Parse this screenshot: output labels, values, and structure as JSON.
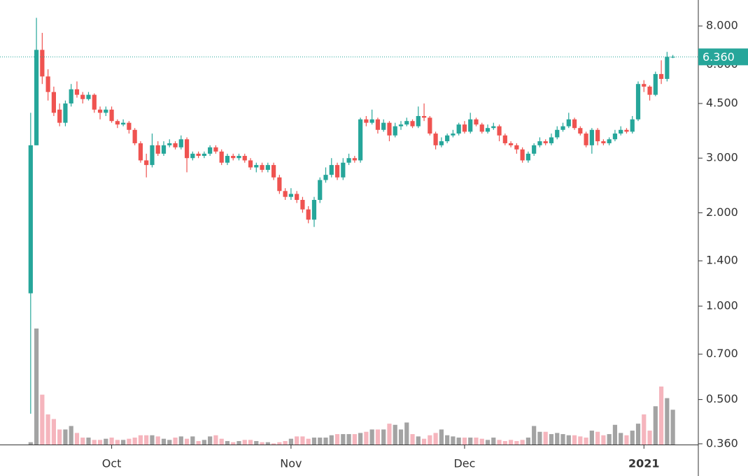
{
  "chart_data": {
    "type": "candlestick",
    "ylog": true,
    "up_color": "#26a69a",
    "down_color": "#ef5350",
    "volume_up_color": "#a3a3a3",
    "volume_down_color": "#f5b5bd",
    "xlim": [
      -5.3,
      115.4
    ],
    "xticks": [
      {
        "value": 14,
        "label": "Oct"
      },
      {
        "value": 45,
        "label": "Nov"
      },
      {
        "value": 75,
        "label": "Dec"
      },
      {
        "value": 106,
        "label": "2021"
      }
    ],
    "ylim": [
      0.358,
      9.7
    ],
    "yticks": [
      {
        "value": 8,
        "label": "8.000"
      },
      {
        "value": 6,
        "label": "6.000"
      },
      {
        "value": 4.5,
        "label": "4.500"
      },
      {
        "value": 3,
        "label": "3.000"
      },
      {
        "value": 2,
        "label": "2.000"
      },
      {
        "value": 1.4,
        "label": "1.400"
      },
      {
        "value": 1,
        "label": "1.000"
      },
      {
        "value": 0.7,
        "label": "0.700"
      },
      {
        "value": 0.5,
        "label": "0.500"
      },
      {
        "value": 0.36,
        "label": "0.360"
      }
    ],
    "volume_ylim": [
      0,
      100
    ],
    "last_price": {
      "value": 6.36,
      "label": "6.360"
    },
    "open": [
      1.1,
      3.3,
      6.7,
      5.5,
      4.9,
      4.3,
      3.9,
      4.5,
      5.0,
      4.8,
      4.65,
      4.8,
      4.3,
      4.2,
      4.3,
      3.95,
      3.85,
      3.9,
      3.7,
      3.35,
      2.95,
      2.85,
      3.3,
      3.1,
      3.3,
      3.35,
      3.25,
      3.45,
      3.0,
      3.1,
      3.05,
      3.1,
      3.25,
      3.15,
      2.9,
      3.05,
      3.0,
      3.05,
      2.95,
      2.8,
      2.85,
      2.75,
      2.85,
      2.6,
      2.35,
      2.25,
      2.3,
      2.2,
      2.05,
      1.9,
      2.2,
      2.55,
      2.65,
      2.85,
      2.6,
      2.9,
      3.0,
      2.95,
      4.0,
      3.9,
      4.0,
      3.7,
      3.9,
      3.55,
      3.8,
      3.85,
      3.95,
      3.8,
      4.1,
      4.05,
      3.6,
      3.3,
      3.4,
      3.55,
      3.6,
      3.85,
      3.65,
      4.0,
      3.85,
      3.65,
      3.75,
      3.8,
      3.55,
      3.35,
      3.3,
      3.2,
      2.95,
      3.1,
      3.3,
      3.4,
      3.35,
      3.5,
      3.7,
      3.8,
      4.0,
      3.75,
      3.6,
      3.3,
      3.7,
      3.4,
      3.35,
      3.45,
      3.6,
      3.7,
      3.65,
      4.0,
      5.2,
      5.1,
      4.8,
      5.6,
      5.4,
      6.36
    ],
    "high": [
      4.2,
      8.5,
      7.6,
      5.8,
      5.1,
      4.5,
      4.6,
      5.2,
      5.3,
      4.9,
      4.9,
      4.85,
      4.4,
      4.4,
      4.4,
      4.0,
      4.0,
      3.95,
      3.75,
      3.4,
      3.1,
      3.6,
      3.4,
      3.4,
      3.45,
      3.4,
      3.55,
      3.5,
      3.15,
      3.15,
      3.15,
      3.3,
      3.3,
      3.2,
      3.1,
      3.1,
      3.1,
      3.1,
      3.0,
      2.9,
      2.9,
      2.9,
      2.9,
      2.65,
      2.4,
      2.4,
      2.35,
      2.25,
      2.1,
      2.25,
      2.6,
      2.8,
      3.0,
      2.9,
      3.0,
      3.1,
      3.05,
      4.05,
      4.1,
      4.3,
      4.05,
      4.0,
      3.95,
      3.9,
      3.95,
      4.05,
      4.0,
      4.4,
      4.5,
      4.1,
      3.65,
      3.5,
      3.6,
      3.7,
      3.9,
      3.95,
      4.2,
      4.05,
      3.9,
      3.85,
      3.9,
      3.85,
      3.6,
      3.4,
      3.35,
      3.25,
      3.15,
      3.35,
      3.5,
      3.45,
      3.6,
      3.8,
      3.9,
      4.2,
      4.05,
      3.8,
      3.65,
      3.75,
      3.75,
      3.45,
      3.5,
      3.7,
      3.8,
      3.75,
      4.1,
      5.3,
      5.35,
      5.15,
      5.7,
      6.2,
      6.6,
      6.45
    ],
    "low": [
      0.45,
      3.3,
      5.2,
      4.6,
      4.1,
      3.8,
      3.8,
      4.4,
      4.7,
      4.5,
      4.6,
      4.2,
      4.0,
      4.1,
      3.9,
      3.75,
      3.8,
      3.6,
      3.3,
      2.9,
      2.6,
      2.8,
      3.05,
      3.05,
      3.25,
      3.2,
      3.2,
      2.7,
      2.95,
      3.0,
      3.0,
      3.05,
      3.1,
      2.85,
      2.85,
      2.95,
      2.95,
      2.9,
      2.75,
      2.7,
      2.7,
      2.7,
      2.55,
      2.3,
      2.2,
      2.2,
      2.15,
      2.0,
      1.85,
      1.8,
      2.15,
      2.5,
      2.6,
      2.55,
      2.55,
      2.85,
      2.9,
      2.9,
      3.8,
      3.85,
      3.6,
      3.65,
      3.4,
      3.5,
      3.7,
      3.8,
      3.75,
      3.75,
      3.95,
      3.55,
      3.2,
      3.25,
      3.35,
      3.5,
      3.55,
      3.6,
      3.6,
      3.8,
      3.6,
      3.6,
      3.7,
      3.4,
      3.3,
      3.25,
      3.1,
      2.9,
      2.9,
      3.05,
      3.25,
      3.3,
      3.3,
      3.45,
      3.65,
      3.75,
      3.7,
      3.55,
      3.25,
      3.1,
      3.3,
      3.3,
      3.3,
      3.4,
      3.55,
      3.6,
      3.6,
      3.95,
      4.9,
      4.6,
      4.75,
      5.2,
      5.3,
      6.3
    ],
    "close": [
      3.3,
      6.7,
      5.5,
      4.9,
      4.2,
      3.9,
      4.5,
      5.0,
      4.8,
      4.65,
      4.8,
      4.3,
      4.2,
      4.3,
      3.95,
      3.85,
      3.9,
      3.7,
      3.35,
      2.95,
      2.85,
      3.3,
      3.1,
      3.3,
      3.35,
      3.25,
      3.45,
      3.0,
      3.1,
      3.05,
      3.1,
      3.25,
      3.15,
      2.9,
      3.05,
      3.0,
      3.05,
      2.95,
      2.8,
      2.85,
      2.75,
      2.85,
      2.6,
      2.35,
      2.25,
      2.3,
      2.2,
      2.05,
      1.9,
      2.2,
      2.55,
      2.65,
      2.85,
      2.6,
      2.9,
      3.0,
      2.95,
      4.0,
      3.9,
      4.0,
      3.7,
      3.9,
      3.55,
      3.8,
      3.85,
      3.95,
      3.8,
      4.1,
      4.05,
      3.6,
      3.3,
      3.4,
      3.55,
      3.6,
      3.85,
      3.65,
      4.0,
      3.85,
      3.65,
      3.75,
      3.8,
      3.55,
      3.35,
      3.3,
      3.2,
      2.95,
      3.1,
      3.3,
      3.4,
      3.35,
      3.5,
      3.7,
      3.8,
      4.0,
      3.75,
      3.6,
      3.3,
      3.7,
      3.4,
      3.35,
      3.45,
      3.6,
      3.7,
      3.65,
      4.0,
      5.2,
      5.1,
      4.8,
      5.6,
      5.4,
      6.36,
      6.36
    ],
    "volume": [
      2,
      100,
      43,
      26,
      22,
      13,
      13,
      16,
      10,
      6,
      6,
      4,
      4,
      5,
      6,
      4,
      4,
      5,
      6,
      8,
      8,
      8,
      7,
      5,
      4,
      6,
      7,
      5,
      7,
      3,
      4,
      7,
      8,
      5,
      3,
      2,
      3,
      4,
      4,
      3,
      2,
      2,
      1,
      2,
      3,
      5,
      7,
      7,
      5,
      6,
      6,
      6,
      8,
      9,
      9,
      9,
      9,
      10,
      11,
      13,
      13,
      13,
      18,
      17,
      13,
      19,
      9,
      7,
      5,
      8,
      10,
      13,
      8,
      7,
      6,
      6,
      6,
      6,
      5,
      4,
      6,
      4,
      3,
      4,
      3,
      4,
      6,
      16,
      11,
      11,
      9,
      10,
      9,
      8,
      8,
      7,
      6,
      12,
      11,
      8,
      9,
      17,
      10,
      8,
      12,
      18,
      26,
      12,
      33,
      50,
      40,
      30
    ]
  }
}
